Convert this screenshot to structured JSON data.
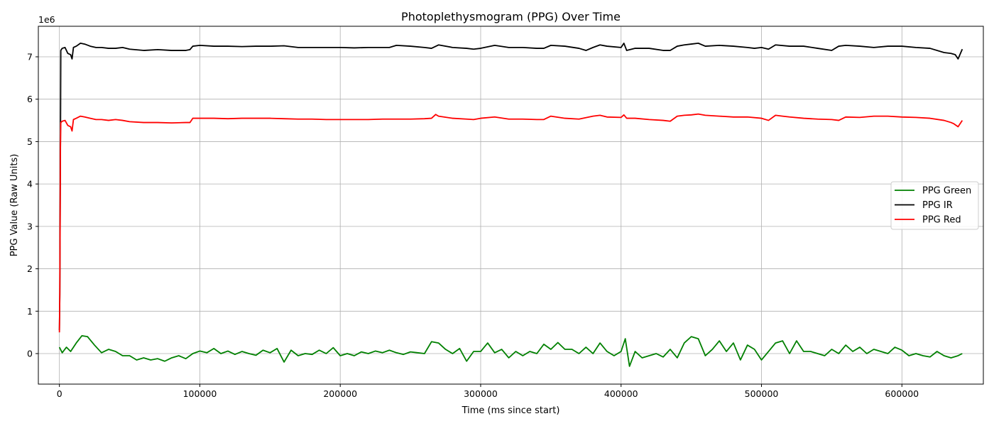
{
  "chart_data": {
    "type": "line",
    "title": "Photoplethysmogram (PPG) Over Time",
    "xlabel": "Time (ms since start)",
    "ylabel": "PPG Value (Raw Units)",
    "y_offset_label": "1e6",
    "xlim": [
      -15000,
      658000
    ],
    "ylim": [
      -0.72,
      7.72
    ],
    "y_scale_factor": 1000000,
    "x_ticks": [
      0,
      100000,
      200000,
      300000,
      400000,
      500000,
      600000
    ],
    "y_ticks": [
      0,
      1,
      2,
      3,
      4,
      5,
      6,
      7
    ],
    "grid": true,
    "legend_position": "center-right",
    "series": [
      {
        "name": "PPG Green",
        "color": "#008000",
        "x": [
          0,
          2000,
          5000,
          8000,
          12000,
          16000,
          20000,
          25000,
          30000,
          35000,
          40000,
          45000,
          50000,
          55000,
          60000,
          65000,
          70000,
          75000,
          80000,
          85000,
          90000,
          95000,
          100000,
          105000,
          110000,
          115000,
          120000,
          125000,
          130000,
          135000,
          140000,
          145000,
          150000,
          155000,
          160000,
          165000,
          170000,
          175000,
          180000,
          185000,
          190000,
          195000,
          200000,
          205000,
          210000,
          215000,
          220000,
          225000,
          230000,
          235000,
          240000,
          245000,
          250000,
          255000,
          260000,
          265000,
          270000,
          275000,
          280000,
          285000,
          290000,
          295000,
          300000,
          305000,
          310000,
          315000,
          320000,
          325000,
          330000,
          335000,
          340000,
          345000,
          350000,
          355000,
          360000,
          365000,
          370000,
          375000,
          380000,
          385000,
          390000,
          395000,
          400000,
          403000,
          406000,
          410000,
          415000,
          420000,
          425000,
          430000,
          435000,
          440000,
          445000,
          450000,
          455000,
          460000,
          465000,
          470000,
          475000,
          480000,
          485000,
          490000,
          495000,
          500000,
          505000,
          510000,
          515000,
          520000,
          525000,
          530000,
          535000,
          540000,
          545000,
          550000,
          555000,
          560000,
          565000,
          570000,
          575000,
          580000,
          585000,
          590000,
          595000,
          600000,
          605000,
          610000,
          615000,
          620000,
          625000,
          630000,
          635000,
          640000,
          643000
        ],
        "y": [
          0.15,
          0.02,
          0.15,
          0.05,
          0.25,
          0.42,
          0.4,
          0.2,
          0.02,
          0.1,
          0.05,
          -0.05,
          -0.05,
          -0.15,
          -0.1,
          -0.15,
          -0.12,
          -0.18,
          -0.1,
          -0.05,
          -0.12,
          0.0,
          0.06,
          0.02,
          0.12,
          0.0,
          0.06,
          -0.02,
          0.05,
          0.0,
          -0.04,
          0.08,
          0.02,
          0.12,
          -0.2,
          0.08,
          -0.05,
          0.0,
          -0.02,
          0.08,
          0.0,
          0.14,
          -0.05,
          0.0,
          -0.05,
          0.04,
          0.0,
          0.06,
          0.02,
          0.08,
          0.02,
          -0.02,
          0.04,
          0.02,
          0.0,
          0.28,
          0.25,
          0.1,
          0.0,
          0.12,
          -0.18,
          0.05,
          0.05,
          0.25,
          0.02,
          0.1,
          -0.1,
          0.05,
          -0.05,
          0.05,
          0.0,
          0.22,
          0.1,
          0.26,
          0.1,
          0.1,
          0.0,
          0.15,
          0.0,
          0.25,
          0.05,
          -0.05,
          0.05,
          0.35,
          -0.3,
          0.05,
          -0.1,
          -0.05,
          0.0,
          -0.08,
          0.1,
          -0.1,
          0.25,
          0.4,
          0.35,
          -0.05,
          0.1,
          0.3,
          0.05,
          0.25,
          -0.15,
          0.2,
          0.1,
          -0.15,
          0.05,
          0.25,
          0.3,
          0.0,
          0.3,
          0.05,
          0.05,
          0.0,
          -0.05,
          0.1,
          0.0,
          0.2,
          0.05,
          0.15,
          0.0,
          0.1,
          0.05,
          0.0,
          0.15,
          0.08,
          -0.05,
          0.0,
          -0.05,
          -0.08,
          0.05,
          -0.05,
          -0.1,
          -0.05,
          0.0
        ]
      },
      {
        "name": "PPG IR",
        "color": "#000000",
        "x": [
          0,
          300,
          700,
          1000,
          2000,
          4000,
          6000,
          8000,
          9000,
          10000,
          12000,
          15000,
          18000,
          22000,
          26000,
          30000,
          35000,
          40000,
          45000,
          50000,
          60000,
          70000,
          80000,
          90000,
          93000,
          95000,
          100000,
          110000,
          120000,
          130000,
          140000,
          150000,
          160000,
          170000,
          180000,
          190000,
          200000,
          210000,
          220000,
          230000,
          235000,
          240000,
          250000,
          260000,
          265000,
          270000,
          280000,
          290000,
          295000,
          300000,
          310000,
          320000,
          330000,
          340000,
          345000,
          350000,
          360000,
          370000,
          375000,
          380000,
          385000,
          390000,
          400000,
          402000,
          404000,
          410000,
          420000,
          430000,
          435000,
          440000,
          445000,
          450000,
          455000,
          460000,
          470000,
          480000,
          490000,
          495000,
          500000,
          505000,
          510000,
          520000,
          530000,
          540000,
          550000,
          555000,
          560000,
          570000,
          580000,
          590000,
          600000,
          610000,
          620000,
          630000,
          635000,
          638000,
          640000,
          643000
        ],
        "y": [
          0.55,
          1.4,
          4.5,
          7.15,
          7.2,
          7.22,
          7.08,
          7.05,
          6.95,
          7.22,
          7.25,
          7.32,
          7.3,
          7.25,
          7.22,
          7.22,
          7.2,
          7.2,
          7.22,
          7.18,
          7.15,
          7.17,
          7.15,
          7.15,
          7.17,
          7.25,
          7.27,
          7.25,
          7.25,
          7.24,
          7.25,
          7.25,
          7.26,
          7.22,
          7.22,
          7.22,
          7.22,
          7.21,
          7.22,
          7.22,
          7.22,
          7.27,
          7.25,
          7.22,
          7.2,
          7.28,
          7.22,
          7.2,
          7.18,
          7.2,
          7.27,
          7.22,
          7.22,
          7.2,
          7.2,
          7.27,
          7.25,
          7.2,
          7.15,
          7.22,
          7.28,
          7.25,
          7.22,
          7.32,
          7.15,
          7.2,
          7.2,
          7.15,
          7.15,
          7.25,
          7.28,
          7.3,
          7.32,
          7.25,
          7.27,
          7.25,
          7.22,
          7.2,
          7.22,
          7.18,
          7.28,
          7.25,
          7.25,
          7.2,
          7.15,
          7.25,
          7.27,
          7.25,
          7.22,
          7.25,
          7.25,
          7.22,
          7.2,
          7.1,
          7.08,
          7.05,
          6.95,
          7.18
        ]
      },
      {
        "name": "PPG Red",
        "color": "#ff0000",
        "x": [
          0,
          300,
          700,
          1000,
          2000,
          4000,
          6000,
          8000,
          9000,
          10000,
          12000,
          15000,
          18000,
          22000,
          26000,
          30000,
          35000,
          40000,
          45000,
          50000,
          60000,
          70000,
          80000,
          90000,
          93000,
          95000,
          100000,
          110000,
          120000,
          130000,
          140000,
          150000,
          160000,
          170000,
          180000,
          190000,
          200000,
          210000,
          220000,
          230000,
          240000,
          250000,
          260000,
          265000,
          268000,
          270000,
          280000,
          290000,
          295000,
          300000,
          310000,
          320000,
          330000,
          340000,
          345000,
          350000,
          360000,
          370000,
          380000,
          385000,
          390000,
          400000,
          402000,
          404000,
          410000,
          420000,
          430000,
          435000,
          440000,
          445000,
          450000,
          455000,
          460000,
          470000,
          480000,
          490000,
          500000,
          505000,
          510000,
          515000,
          520000,
          530000,
          540000,
          550000,
          555000,
          560000,
          570000,
          580000,
          590000,
          600000,
          610000,
          620000,
          630000,
          635000,
          637000,
          640000,
          643000
        ],
        "y": [
          0.5,
          1.45,
          4.8,
          5.45,
          5.48,
          5.5,
          5.38,
          5.35,
          5.25,
          5.52,
          5.55,
          5.6,
          5.58,
          5.55,
          5.52,
          5.52,
          5.5,
          5.52,
          5.5,
          5.47,
          5.45,
          5.45,
          5.44,
          5.45,
          5.45,
          5.55,
          5.55,
          5.55,
          5.54,
          5.55,
          5.55,
          5.55,
          5.54,
          5.53,
          5.53,
          5.52,
          5.52,
          5.52,
          5.52,
          5.53,
          5.53,
          5.53,
          5.54,
          5.55,
          5.64,
          5.6,
          5.55,
          5.53,
          5.52,
          5.55,
          5.58,
          5.53,
          5.53,
          5.52,
          5.52,
          5.6,
          5.55,
          5.53,
          5.6,
          5.62,
          5.58,
          5.57,
          5.63,
          5.55,
          5.55,
          5.52,
          5.5,
          5.48,
          5.6,
          5.62,
          5.63,
          5.65,
          5.62,
          5.6,
          5.58,
          5.58,
          5.55,
          5.5,
          5.62,
          5.6,
          5.58,
          5.55,
          5.53,
          5.52,
          5.5,
          5.58,
          5.57,
          5.6,
          5.6,
          5.58,
          5.57,
          5.55,
          5.5,
          5.45,
          5.42,
          5.35,
          5.5
        ]
      }
    ]
  }
}
